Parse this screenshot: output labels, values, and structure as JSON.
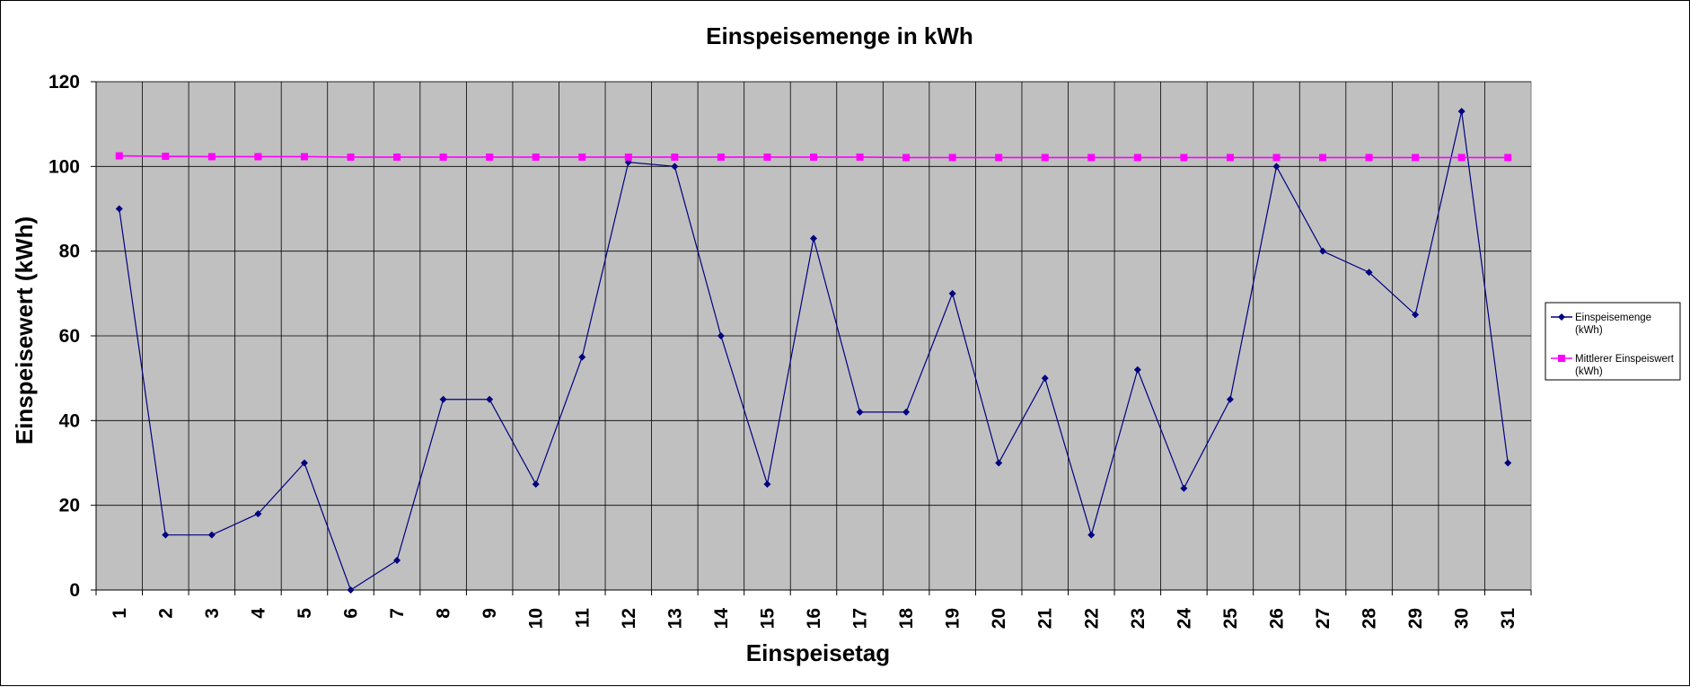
{
  "chart_data": {
    "type": "line",
    "title": "Einspeisemenge in kWh",
    "xlabel": "Einspeisetag",
    "ylabel": "Einspeisewert  (kWh)",
    "ylim": [
      0,
      120
    ],
    "yticks": [
      "0",
      "20",
      "40",
      "60",
      "80",
      "100",
      "120"
    ],
    "categories": [
      "1",
      "2",
      "3",
      "4",
      "5",
      "6",
      "7",
      "8",
      "9",
      "10",
      "11",
      "12",
      "13",
      "14",
      "15",
      "16",
      "17",
      "18",
      "19",
      "20",
      "21",
      "22",
      "23",
      "24",
      "25",
      "26",
      "27",
      "28",
      "29",
      "30",
      "31"
    ],
    "grid": true,
    "legend_position": "right",
    "plot_background": "#c0c0c0",
    "series": [
      {
        "name_lines": [
          "Einspeisemenge",
          "(kWh)"
        ],
        "color": "#000080",
        "marker": "diamond",
        "values": [
          90,
          13,
          13,
          18,
          30,
          0,
          7,
          45,
          45,
          25,
          55,
          101,
          100,
          60,
          25,
          83,
          42,
          42,
          70,
          30,
          50,
          13,
          52,
          24,
          45,
          100,
          80,
          75,
          65,
          113,
          30
        ]
      },
      {
        "name_lines": [
          "Mittlerer Einspeiswert",
          "(kWh)"
        ],
        "color": "#ff00ff",
        "marker": "square",
        "values": [
          102.5,
          102.4,
          102.3,
          102.3,
          102.3,
          102.2,
          102.2,
          102.2,
          102.2,
          102.2,
          102.2,
          102.2,
          102.2,
          102.2,
          102.2,
          102.2,
          102.2,
          102.1,
          102.1,
          102.1,
          102.1,
          102.1,
          102.1,
          102.1,
          102.1,
          102.1,
          102.1,
          102.1,
          102.1,
          102.1,
          102.1
        ]
      }
    ]
  }
}
